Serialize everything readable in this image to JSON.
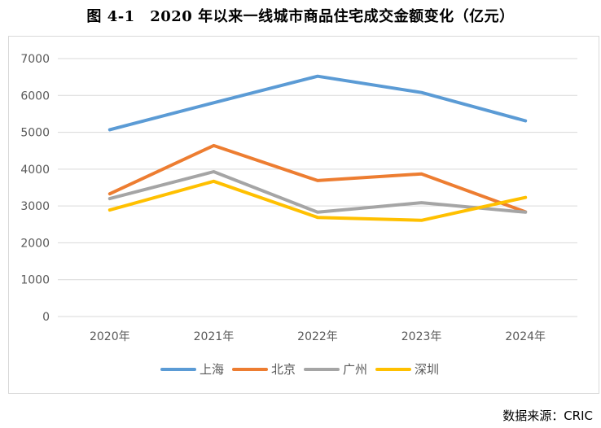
{
  "figure": {
    "title": "图 4-1　2020 年以来一线城市商品住宅成交金额变化（亿元）",
    "source": "数据来源：CRIC"
  },
  "chart_data": {
    "type": "line",
    "categories": [
      "2020年",
      "2021年",
      "2022年",
      "2023年",
      "2024年"
    ],
    "yticks": [
      "0",
      "1000",
      "2000",
      "3000",
      "4000",
      "5000",
      "6000",
      "7000"
    ],
    "ylim": [
      0,
      7000
    ],
    "grid": true,
    "legend_position": "bottom",
    "series": [
      {
        "name": "上海",
        "color": "#5B9BD5",
        "values": [
          5070,
          5800,
          6520,
          6080,
          5310
        ]
      },
      {
        "name": "北京",
        "color": "#ED7D31",
        "values": [
          3330,
          4640,
          3690,
          3870,
          2840
        ]
      },
      {
        "name": "广州",
        "color": "#A5A5A5",
        "values": [
          3200,
          3930,
          2830,
          3090,
          2830
        ]
      },
      {
        "name": "深圳",
        "color": "#FFC000",
        "values": [
          2890,
          3670,
          2690,
          2610,
          3230
        ]
      }
    ]
  }
}
